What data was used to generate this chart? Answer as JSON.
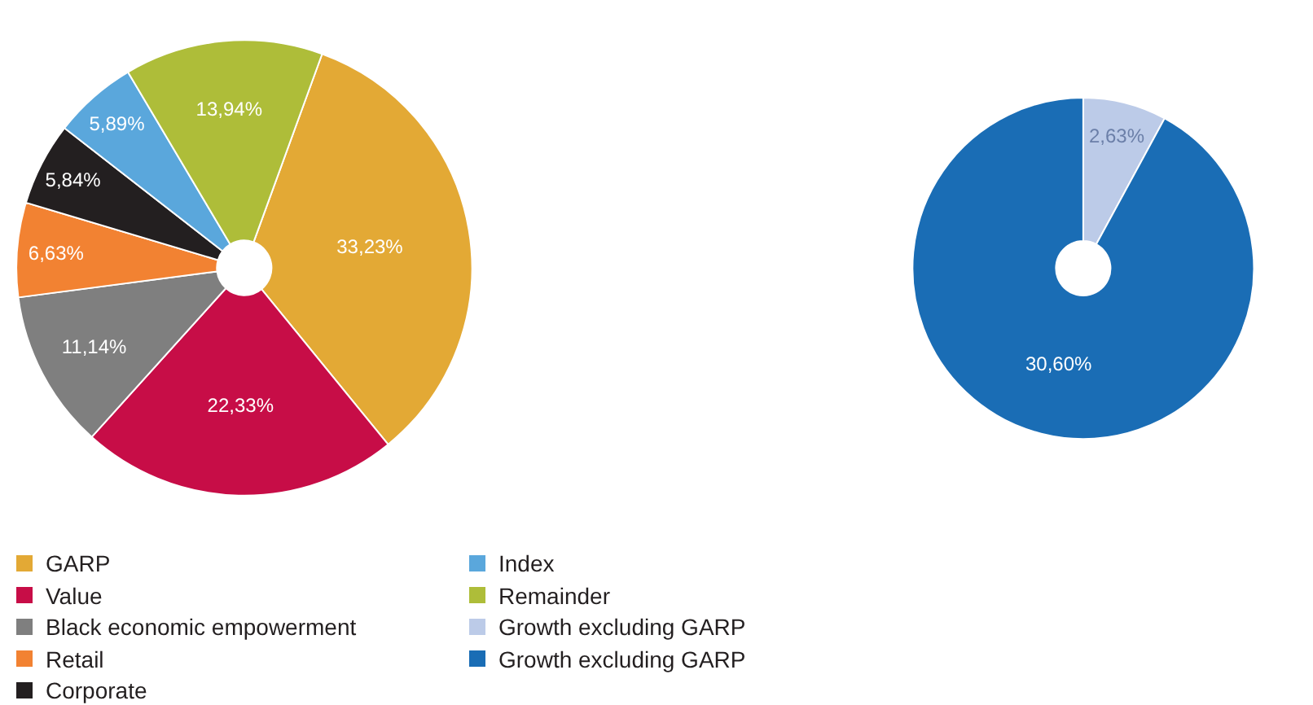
{
  "chart_data": [
    {
      "type": "pie",
      "categories": [
        "GARP",
        "Value",
        "Black economic empowerment",
        "Retail",
        "Corporate",
        "Index",
        "Remainder"
      ],
      "values": [
        33.23,
        22.33,
        11.14,
        6.63,
        5.84,
        5.89,
        13.94
      ],
      "value_labels": [
        "33,23%",
        "22,33%",
        "11,14%",
        "6,63%",
        "5,84%",
        "5,89%",
        "13,94%"
      ],
      "colors": [
        "#e3a935",
        "#c70d47",
        "#7f7f7f",
        "#f28232",
        "#231f20",
        "#5aa7dc",
        "#aebd39"
      ],
      "legend": "bottom"
    },
    {
      "type": "donut",
      "categories": [
        "Growth excluding GARP",
        "Growth excluding GARP"
      ],
      "values": [
        2.63,
        30.6
      ],
      "value_labels": [
        "2,63%",
        "30,60%"
      ],
      "colors": [
        "#bccbe8",
        "#1a6db5"
      ],
      "legend": "bottom"
    }
  ]
}
